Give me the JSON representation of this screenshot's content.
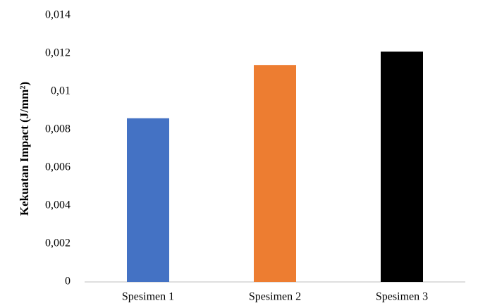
{
  "chart_data": {
    "type": "bar",
    "y_label": "Kekuatan Impact (J/mm²)",
    "categories": [
      "Spesimen 1",
      "Spesimen 2",
      "Spesimen 3"
    ],
    "values": [
      0.0086,
      0.0114,
      0.0121
    ],
    "colors": [
      "#4472c4",
      "#ed7d31",
      "#000000"
    ],
    "ylim": [
      0,
      0.014
    ],
    "yticks": [
      0,
      {
        "value": 0.002,
        "label": "0,002"
      },
      {
        "value": 0.004,
        "label": "0,004"
      },
      {
        "value": 0.006,
        "label": "0,006"
      },
      {
        "value": 0.008,
        "label": "0,008"
      },
      {
        "value": 0.01,
        "label": "0,01"
      },
      {
        "value": 0.012,
        "label": "0,012"
      },
      {
        "value": 0.014,
        "label": "0,014"
      }
    ],
    "grid": false
  }
}
